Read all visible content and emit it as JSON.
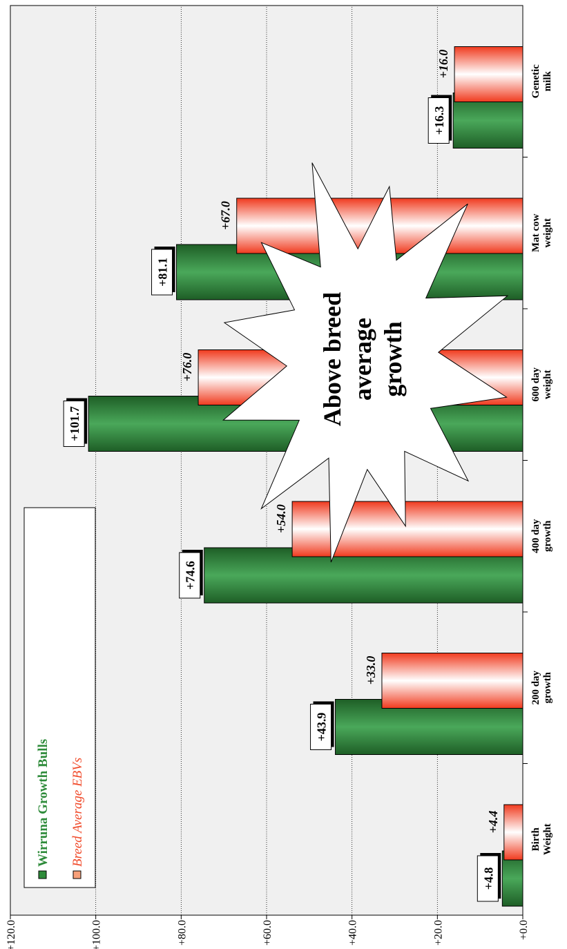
{
  "chart_data": {
    "type": "bar",
    "categories": [
      "Birth Weight",
      "200 day growth",
      "400 day growth",
      "600 day weight",
      "Mat cow weight",
      "Genetic milk"
    ],
    "series": [
      {
        "name": "Wirruna Growth Bulls",
        "color": "#2e8b3a",
        "values": [
          4.8,
          43.9,
          74.6,
          101.7,
          81.1,
          16.3
        ],
        "value_labels": [
          "+4.8",
          "+43.9",
          "+74.6",
          "+101.7",
          "+81.1",
          "+16.3"
        ]
      },
      {
        "name": "Breed Average EBVs",
        "color": "#f04a2a",
        "values": [
          4.4,
          33.0,
          54.0,
          76.0,
          67.0,
          16.0
        ],
        "value_labels": [
          "+4.4",
          "+33.0",
          "+54.0",
          "+76.0",
          "+67.0",
          "+16.0"
        ]
      }
    ],
    "ylim": [
      0,
      120
    ],
    "yticks": [
      {
        "value": 0,
        "label": "+0.0"
      },
      {
        "value": 20,
        "label": "+20.0"
      },
      {
        "value": 40,
        "label": "+40.0"
      },
      {
        "value": 60,
        "label": "+60.0"
      },
      {
        "value": 80,
        "label": "+80.0"
      },
      {
        "value": 100,
        "label": "+100.0"
      },
      {
        "value": 120,
        "label": "+120.0"
      }
    ],
    "grid": true,
    "annotation": "Above breed average growth"
  }
}
